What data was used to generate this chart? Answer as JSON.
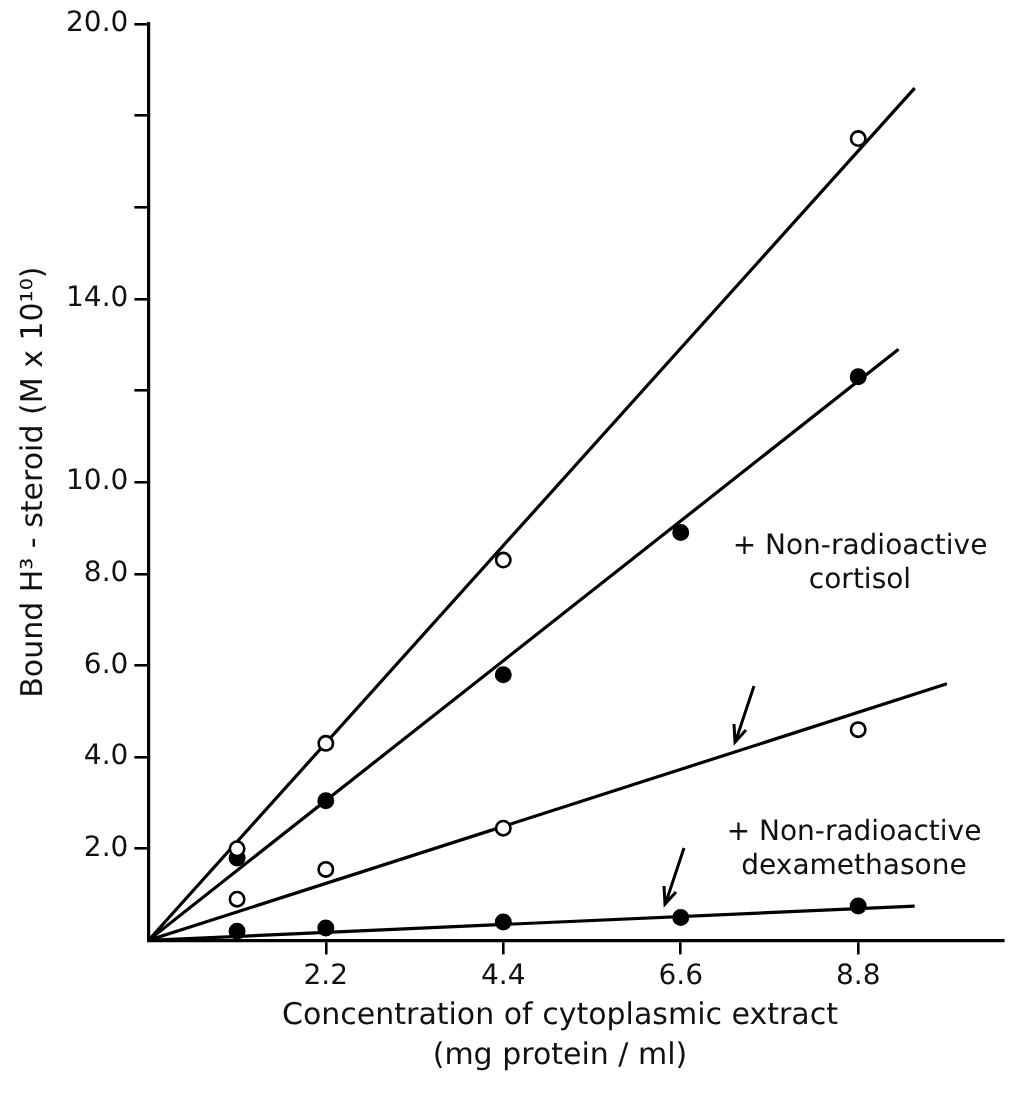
{
  "chart_data": {
    "type": "scatter",
    "xlabel": "Concentration of cytoplasmic extract (mg protein / ml)",
    "ylabel": "Bound H³ - steroid (M x 10¹⁰)",
    "xlim": [
      0,
      10.6
    ],
    "ylim": [
      0,
      20
    ],
    "xticks": [
      2.2,
      4.4,
      6.6,
      8.8
    ],
    "yticks": [
      {
        "value": 2,
        "label": "2.0"
      },
      {
        "value": 4,
        "label": "4.0"
      },
      {
        "value": 6,
        "label": "6.0"
      },
      {
        "value": 8,
        "label": "8.0"
      },
      {
        "value": 10,
        "label": "10.0"
      },
      {
        "value": 12,
        "label": null
      },
      {
        "value": 14,
        "label": "14.0"
      },
      {
        "value": 16,
        "label": null
      },
      {
        "value": 18,
        "label": null
      },
      {
        "value": 20,
        "label": "20.0"
      }
    ],
    "grid": false,
    "legend": false,
    "marker": "circle",
    "series": [
      {
        "color": "#ffffff",
        "x": [
          1.1,
          2.2,
          4.4,
          8.8
        ],
        "values": [
          2.0,
          4.3,
          8.3,
          17.5
        ]
      },
      {
        "color": "#000000",
        "x": [
          1.1,
          2.2,
          4.4,
          6.6,
          8.8
        ],
        "values": [
          1.8,
          3.05,
          5.8,
          8.9,
          12.3
        ]
      },
      {
        "color": "#ffffff",
        "x": [
          1.1,
          2.2,
          4.4,
          8.8
        ],
        "values": [
          0.9,
          1.55,
          2.45,
          4.6
        ]
      },
      {
        "color": "#000000",
        "x": [
          1.1,
          2.2,
          4.4,
          6.6,
          8.8
        ],
        "values": [
          0.2,
          0.27,
          0.4,
          0.5,
          0.75
        ]
      },
      {
        "type": "line",
        "color": "#000000",
        "marker": "none",
        "x": [
          0,
          9.5
        ],
        "values": [
          0,
          18.6
        ]
      },
      {
        "type": "line",
        "color": "#000000",
        "marker": "none",
        "x": [
          0,
          9.3
        ],
        "values": [
          0,
          12.9
        ]
      },
      {
        "type": "line",
        "color": "#000000",
        "marker": "none",
        "x": [
          0,
          9.9
        ],
        "values": [
          0,
          5.6
        ]
      },
      {
        "type": "line",
        "color": "#000000",
        "marker": "none",
        "x": [
          0,
          9.5
        ],
        "values": [
          0,
          0.75
        ]
      }
    ],
    "annotations": [
      "+ Non-radioactive cortisol",
      "+ Non-radioactive dexamethasone"
    ]
  }
}
